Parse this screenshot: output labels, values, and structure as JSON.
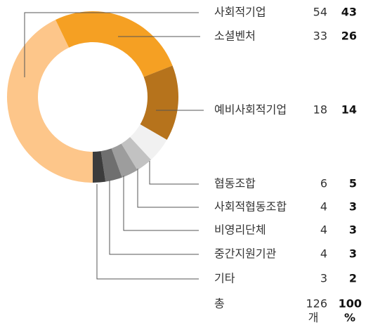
{
  "chart_data": {
    "type": "donut",
    "categories": [
      "사회적기업",
      "소셜벤처",
      "예비사회적기업",
      "협동조합",
      "사회적협동조합",
      "비영리단체",
      "중간지원기관",
      "기타"
    ],
    "values": [
      54,
      33,
      18,
      6,
      4,
      4,
      4,
      3
    ],
    "percents": [
      43,
      26,
      14,
      5,
      3,
      3,
      3,
      2
    ],
    "colors": [
      "#fdc68a",
      "#f5a023",
      "#b6731c",
      "#f1f1f1",
      "#c2c2c2",
      "#9d9d9d",
      "#6f6f6f",
      "#3c3c3c"
    ],
    "start_angle": 180,
    "total_label": "총",
    "total": 126,
    "total_unit": "개",
    "total_percent": 100,
    "percent_unit": "%"
  }
}
